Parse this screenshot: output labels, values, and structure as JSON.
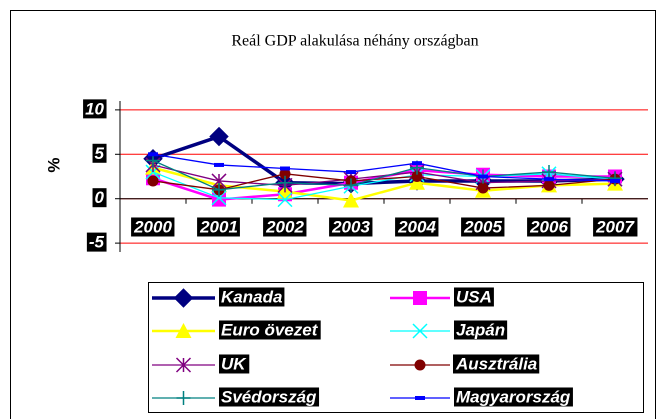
{
  "chart_data": {
    "type": "line",
    "title": "Reál GDP alakulása néhány országban",
    "y_label": "%",
    "categories": [
      "2000",
      "2001",
      "2002",
      "2003",
      "2004",
      "2005",
      "2006",
      "2007"
    ],
    "ylim": [
      -6,
      11
    ],
    "yticks": [
      10,
      5,
      0,
      -5
    ],
    "grid": true,
    "grid_color": "#ff0000",
    "legend": "bottom",
    "series": [
      {
        "name": "Kanada",
        "color": "#000080",
        "marker": "diamond",
        "values": [
          4.5,
          7,
          1.8,
          1.7,
          2.0,
          2.0,
          2.0,
          2.2
        ]
      },
      {
        "name": "USA",
        "color": "#ff00ff",
        "marker": "square",
        "values": [
          2.3,
          -0.1,
          0.5,
          1.8,
          3.2,
          2.7,
          2.5,
          2.5
        ]
      },
      {
        "name": "Euro övezet",
        "color": "#ffff00",
        "marker": "triangle",
        "values": [
          3.5,
          1.5,
          0.8,
          -0.2,
          1.8,
          0.9,
          1.5,
          1.7
        ]
      },
      {
        "name": "Japán",
        "color": "#00ffff",
        "marker": "x",
        "values": [
          3.0,
          0.1,
          -0.1,
          1.4,
          2.7,
          2.5,
          2.8,
          2.2
        ]
      },
      {
        "name": "UK",
        "color": "#800080",
        "marker": "asterisk",
        "values": [
          3.8,
          2.0,
          1.5,
          2.2,
          3.0,
          1.8,
          2.0,
          2.2
        ]
      },
      {
        "name": "Ausztrália",
        "color": "#800000",
        "marker": "circle",
        "values": [
          2.0,
          1.0,
          2.8,
          2.0,
          2.5,
          1.2,
          1.5,
          2.2
        ]
      },
      {
        "name": "Svédország",
        "color": "#008080",
        "marker": "plus",
        "values": [
          4.3,
          1.0,
          1.8,
          1.5,
          3.5,
          2.5,
          3.0,
          2.3
        ]
      },
      {
        "name": "Magyarország",
        "color": "#0000ff",
        "marker": "dash",
        "values": [
          5.0,
          3.8,
          3.4,
          3.0,
          4.0,
          2.5,
          2.2,
          2.0
        ]
      }
    ]
  }
}
